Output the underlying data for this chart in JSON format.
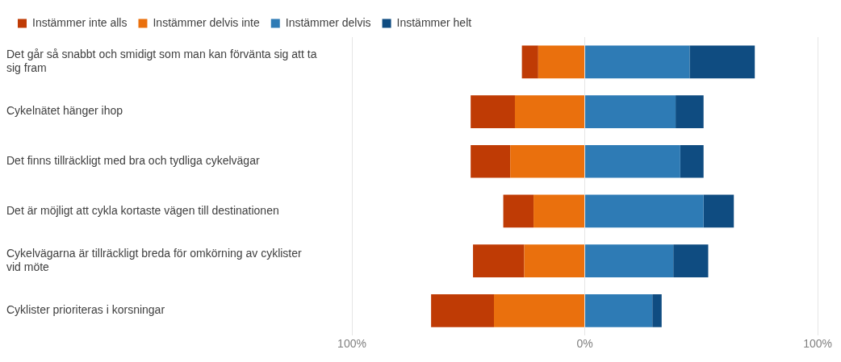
{
  "chart_data": {
    "type": "bar",
    "orientation": "horizontal",
    "stacked": true,
    "categories": [
      "Det går så snabbt och smidigt som man kan förvänta sig att ta sig fram",
      "Cykelnätet hänger ihop",
      "Det finns tillräckligt med bra och tydliga cykelvägar",
      "Det är möjligt att cykla kortaste vägen till destinationen",
      "Cykelvägarna är tillräckligt breda för omkörning av cyklister vid möte",
      "Cyklister prioriteras i korsningar"
    ],
    "series": [
      {
        "name": "Instämmer delvis inte",
        "color": "#ea700d",
        "values": [
          -20,
          -30,
          -32,
          -22,
          -26,
          -39
        ]
      },
      {
        "name": "Instämmer inte alls",
        "color": "#bf3b05",
        "values": [
          -7,
          -19,
          -17,
          -13,
          -22,
          -27
        ]
      },
      {
        "name": "Instämmer delvis",
        "color": "#2e7bb5",
        "values": [
          45,
          39,
          41,
          51,
          38,
          29
        ]
      },
      {
        "name": "Instämmer helt",
        "color": "#0f4c81",
        "values": [
          28,
          12,
          10,
          13,
          15,
          4
        ]
      }
    ],
    "xlim": [
      -100,
      100
    ],
    "xticks": [
      {
        "value": -100,
        "label": "100%"
      },
      {
        "value": 0,
        "label": "0%"
      },
      {
        "value": 100,
        "label": "100%"
      }
    ],
    "grid": "x",
    "legend": "top left"
  }
}
